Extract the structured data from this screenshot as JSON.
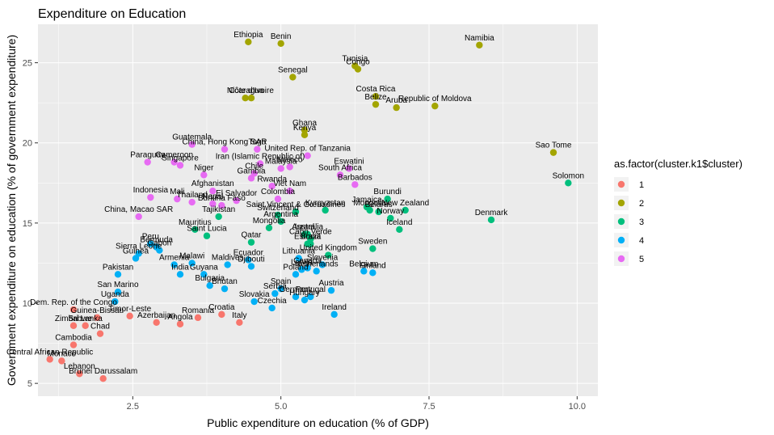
{
  "chart_data": {
    "type": "scatter",
    "title": "Expenditure on Education",
    "xlabel": "Public expenditure on education (% of GDP)",
    "ylabel": "Government expenditure on education (% of government expenditure)",
    "xlim": [
      0.9,
      10.35
    ],
    "ylim": [
      4.2,
      27.4
    ],
    "xticks": [
      2.5,
      5.0,
      7.5,
      10.0
    ],
    "xtick_labels": [
      "2.5",
      "5.0",
      "7.5",
      "10.0"
    ],
    "yticks": [
      5,
      10,
      15,
      20,
      25
    ],
    "ytick_labels": [
      "5",
      "10",
      "15",
      "20",
      "25"
    ],
    "grid": true,
    "legend": {
      "title": "as.factor(cluster.k1$cluster)",
      "placement": "right",
      "entries": [
        {
          "label": "1",
          "color": "#F8766D"
        },
        {
          "label": "2",
          "color": "#A3A500"
        },
        {
          "label": "3",
          "color": "#00BF7D"
        },
        {
          "label": "4",
          "color": "#00B0F6"
        },
        {
          "label": "5",
          "color": "#E76BF3"
        }
      ]
    },
    "series": [
      {
        "name": "1",
        "color": "#F8766D",
        "points": [
          {
            "x": 1.1,
            "y": 6.5,
            "label": "Central African Republic"
          },
          {
            "x": 1.3,
            "y": 6.4,
            "label": "Monaco"
          },
          {
            "x": 1.5,
            "y": 7.4,
            "label": "Cambodia"
          },
          {
            "x": 1.6,
            "y": 5.6,
            "label": "Lebanon"
          },
          {
            "x": 2.0,
            "y": 5.3,
            "label": "Brunei Darussalam"
          },
          {
            "x": 1.5,
            "y": 9.6,
            "label": "Dem. Rep. of the Congo"
          },
          {
            "x": 1.9,
            "y": 9.1,
            "label": "Guinea-Bissau"
          },
          {
            "x": 1.5,
            "y": 8.6,
            "label": "Zimbabwe"
          },
          {
            "x": 1.7,
            "y": 8.6,
            "label": "Sri Lanka"
          },
          {
            "x": 1.95,
            "y": 8.1,
            "label": "Chad"
          },
          {
            "x": 2.45,
            "y": 9.2,
            "label": "Timor-Leste"
          },
          {
            "x": 2.9,
            "y": 8.8,
            "label": "Azerbaijan"
          },
          {
            "x": 3.3,
            "y": 8.7,
            "label": "Angola"
          },
          {
            "x": 3.6,
            "y": 9.1,
            "label": "Romania"
          },
          {
            "x": 4.0,
            "y": 9.3,
            "label": "Croatia"
          },
          {
            "x": 4.3,
            "y": 8.8,
            "label": "Italy"
          }
        ]
      },
      {
        "name": "2",
        "color": "#A3A500",
        "points": [
          {
            "x": 4.45,
            "y": 26.3,
            "label": "Ethiopia"
          },
          {
            "x": 5.0,
            "y": 26.2,
            "label": "Benin"
          },
          {
            "x": 8.35,
            "y": 26.1,
            "label": "Namibia"
          },
          {
            "x": 6.25,
            "y": 24.8,
            "label": "Tunisia"
          },
          {
            "x": 6.3,
            "y": 24.6,
            "label": "Congo"
          },
          {
            "x": 5.2,
            "y": 24.1,
            "label": "Senegal"
          },
          {
            "x": 4.4,
            "y": 22.8,
            "label": "Nicaragua"
          },
          {
            "x": 4.5,
            "y": 22.8,
            "label": "Côte d'Ivoire"
          },
          {
            "x": 6.6,
            "y": 22.9,
            "label": "Costa Rica"
          },
          {
            "x": 6.6,
            "y": 22.4,
            "label": "Belize"
          },
          {
            "x": 6.95,
            "y": 22.2,
            "label": "Aruba"
          },
          {
            "x": 7.6,
            "y": 22.3,
            "label": "Republic of Moldova"
          },
          {
            "x": 5.4,
            "y": 20.8,
            "label": "Ghana"
          },
          {
            "x": 5.4,
            "y": 20.5,
            "label": "Kenya"
          },
          {
            "x": 9.6,
            "y": 19.4,
            "label": "Sao Tome"
          }
        ]
      },
      {
        "name": "3",
        "color": "#00BF7D",
        "points": [
          {
            "x": 9.85,
            "y": 17.5,
            "label": "Solomon"
          },
          {
            "x": 6.8,
            "y": 16.5,
            "label": "Burundi"
          },
          {
            "x": 6.45,
            "y": 16.0,
            "label": "Jamaica"
          },
          {
            "x": 6.5,
            "y": 15.8,
            "label": "Mongolia"
          },
          {
            "x": 6.65,
            "y": 15.7,
            "label": "Belarus"
          },
          {
            "x": 7.1,
            "y": 15.8,
            "label": "New Zealand"
          },
          {
            "x": 6.85,
            "y": 15.3,
            "label": "Norway"
          },
          {
            "x": 8.55,
            "y": 15.2,
            "label": "Denmark"
          },
          {
            "x": 5.75,
            "y": 15.8,
            "label": "Kyrgyzstan"
          },
          {
            "x": 5.25,
            "y": 15.7,
            "label": "Saint Vincent & Grenadines"
          },
          {
            "x": 7.0,
            "y": 14.6,
            "label": "Iceland"
          },
          {
            "x": 4.95,
            "y": 15.5,
            "label": "Switzerland"
          },
          {
            "x": 5.0,
            "y": 15.1,
            "label": "Argentina"
          },
          {
            "x": 4.8,
            "y": 14.7,
            "label": "Mongolia"
          },
          {
            "x": 3.55,
            "y": 14.6,
            "label": "Mauritius"
          },
          {
            "x": 3.95,
            "y": 15.4,
            "label": "Tajikistan"
          },
          {
            "x": 3.75,
            "y": 14.2,
            "label": "Saint Lucia"
          },
          {
            "x": 4.5,
            "y": 13.8,
            "label": "Qatar"
          },
          {
            "x": 5.45,
            "y": 14.3,
            "label": "Australia"
          },
          {
            "x": 5.4,
            "y": 14.3,
            "label": "Israel"
          },
          {
            "x": 5.45,
            "y": 13.7,
            "label": "Estonia"
          },
          {
            "x": 5.5,
            "y": 14.0,
            "label": "Cabo Verde"
          },
          {
            "x": 5.5,
            "y": 13.7,
            "label": "Brazil"
          },
          {
            "x": 6.55,
            "y": 13.4,
            "label": "Sweden"
          },
          {
            "x": 5.8,
            "y": 13.0,
            "label": "United Kingdom"
          }
        ]
      },
      {
        "name": "4",
        "color": "#00B0F6",
        "points": [
          {
            "x": 2.8,
            "y": 13.7,
            "label": "Peru"
          },
          {
            "x": 2.9,
            "y": 13.5,
            "label": "Bermuda"
          },
          {
            "x": 2.95,
            "y": 13.3,
            "label": "Gabon"
          },
          {
            "x": 2.6,
            "y": 13.1,
            "label": "Sierra Leone"
          },
          {
            "x": 2.55,
            "y": 12.8,
            "label": "Guinea"
          },
          {
            "x": 2.25,
            "y": 11.8,
            "label": "Pakistan"
          },
          {
            "x": 3.2,
            "y": 12.4,
            "label": "Armenia"
          },
          {
            "x": 3.5,
            "y": 12.5,
            "label": "Malawi"
          },
          {
            "x": 3.3,
            "y": 11.8,
            "label": "India"
          },
          {
            "x": 3.7,
            "y": 11.8,
            "label": "Guyana"
          },
          {
            "x": 4.1,
            "y": 12.4,
            "label": "Maldives"
          },
          {
            "x": 4.45,
            "y": 12.7,
            "label": "Ecuador"
          },
          {
            "x": 4.5,
            "y": 12.3,
            "label": "Djibouti"
          },
          {
            "x": 3.8,
            "y": 11.1,
            "label": "Bulgaria"
          },
          {
            "x": 4.05,
            "y": 10.9,
            "label": "Bhutan"
          },
          {
            "x": 2.25,
            "y": 10.7,
            "label": "San Marino"
          },
          {
            "x": 2.2,
            "y": 10.1,
            "label": "Uganda"
          },
          {
            "x": 4.9,
            "y": 10.6,
            "label": "Serbia"
          },
          {
            "x": 5.0,
            "y": 10.9,
            "label": "Spain"
          },
          {
            "x": 4.55,
            "y": 10.1,
            "label": "Slovakia"
          },
          {
            "x": 4.85,
            "y": 9.7,
            "label": "Czechia"
          },
          {
            "x": 5.25,
            "y": 10.4,
            "label": "Germany"
          },
          {
            "x": 5.5,
            "y": 10.4,
            "label": "Portugal"
          },
          {
            "x": 5.4,
            "y": 10.2,
            "label": "Hungary"
          },
          {
            "x": 5.85,
            "y": 10.8,
            "label": "Austria"
          },
          {
            "x": 5.25,
            "y": 11.8,
            "label": "Poland"
          },
          {
            "x": 5.3,
            "y": 12.8,
            "label": "Lithuania"
          },
          {
            "x": 5.45,
            "y": 12.2,
            "label": "Canada"
          },
          {
            "x": 5.35,
            "y": 12.1,
            "label": "Latvia"
          },
          {
            "x": 5.6,
            "y": 12.0,
            "label": "Netherlands"
          },
          {
            "x": 5.7,
            "y": 12.4,
            "label": "Slovenia"
          },
          {
            "x": 6.4,
            "y": 12.0,
            "label": "Belgium"
          },
          {
            "x": 6.55,
            "y": 11.9,
            "label": "Finland"
          },
          {
            "x": 5.9,
            "y": 9.3,
            "label": "Ireland"
          }
        ]
      },
      {
        "name": "5",
        "color": "#E76BF3",
        "points": [
          {
            "x": 3.5,
            "y": 19.9,
            "label": "Guatemala"
          },
          {
            "x": 4.05,
            "y": 19.6,
            "label": "China, Hong Kong SAR"
          },
          {
            "x": 4.6,
            "y": 19.6,
            "label": "Togo"
          },
          {
            "x": 5.45,
            "y": 19.2,
            "label": "United Rep. of Tanzania"
          },
          {
            "x": 2.75,
            "y": 18.8,
            "label": "Paraguay"
          },
          {
            "x": 3.2,
            "y": 18.8,
            "label": "Cameroon"
          },
          {
            "x": 3.3,
            "y": 18.6,
            "label": "Singapore"
          },
          {
            "x": 4.65,
            "y": 18.7,
            "label": "Iran (Islamic Republic of)"
          },
          {
            "x": 5.15,
            "y": 18.5,
            "label": "Mexico"
          },
          {
            "x": 3.7,
            "y": 18.0,
            "label": "Niger"
          },
          {
            "x": 4.55,
            "y": 18.1,
            "label": "Chile"
          },
          {
            "x": 4.5,
            "y": 17.8,
            "label": "Gambia"
          },
          {
            "x": 5.0,
            "y": 18.4,
            "label": "Malaysia"
          },
          {
            "x": 4.85,
            "y": 17.3,
            "label": "Rwanda"
          },
          {
            "x": 5.15,
            "y": 17.0,
            "label": "Viet Nam"
          },
          {
            "x": 6.0,
            "y": 18.0,
            "label": "South Africa"
          },
          {
            "x": 6.15,
            "y": 18.4,
            "label": "Eswatini"
          },
          {
            "x": 6.25,
            "y": 17.4,
            "label": "Barbados"
          },
          {
            "x": 3.85,
            "y": 17.0,
            "label": "Afghanistan"
          },
          {
            "x": 2.8,
            "y": 16.6,
            "label": "Indonesia"
          },
          {
            "x": 3.25,
            "y": 16.5,
            "label": "Mali"
          },
          {
            "x": 3.5,
            "y": 16.3,
            "label": "Thailand"
          },
          {
            "x": 3.85,
            "y": 16.2,
            "label": "Nepal"
          },
          {
            "x": 4.0,
            "y": 16.1,
            "label": "Burkina Faso"
          },
          {
            "x": 4.25,
            "y": 16.4,
            "label": "El Salvador"
          },
          {
            "x": 4.95,
            "y": 16.5,
            "label": "Colombia"
          },
          {
            "x": 2.6,
            "y": 15.4,
            "label": "China, Macao SAR"
          }
        ]
      }
    ]
  }
}
